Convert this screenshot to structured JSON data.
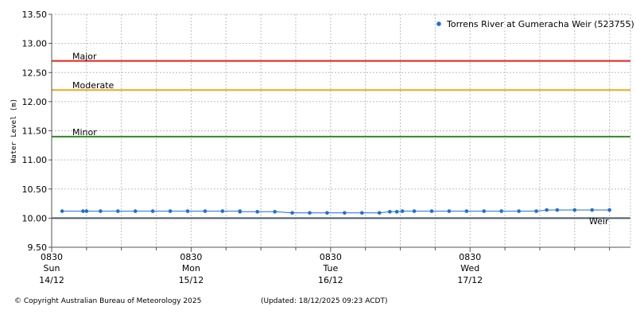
{
  "chart_data": {
    "type": "scatter",
    "title": "",
    "ylabel": "Water Level (m)",
    "xlabel": "",
    "ylim": [
      9.5,
      13.5
    ],
    "y_ticks": [
      "9.50",
      "10.00",
      "10.50",
      "11.00",
      "11.50",
      "12.00",
      "12.50",
      "13.00",
      "13.50"
    ],
    "x_range_hours": [
      0,
      83
    ],
    "x_ticks": [
      {
        "hour": 0,
        "time": "0830",
        "day": "Sun",
        "date": "14/12"
      },
      {
        "hour": 20,
        "time": "0830",
        "day": "Mon",
        "date": "15/12"
      },
      {
        "hour": 40,
        "time": "0830",
        "day": "Tue",
        "date": "16/12"
      },
      {
        "hour": 60,
        "time": "0830",
        "day": "Wed",
        "date": "17/12"
      }
    ],
    "grid": true,
    "legend_position": "top-right",
    "series": [
      {
        "name": "Torrens River at Gumeracha Weir (523755)",
        "color": "#1f6fd6",
        "x": [
          1.5,
          4.5,
          5,
          7,
          9.5,
          12,
          14.5,
          17,
          19.5,
          22,
          24.5,
          27,
          27,
          29.5,
          32,
          34.5,
          37,
          39.5,
          42,
          44.5,
          47,
          48.5,
          49.5,
          50.3,
          52,
          54.5,
          57,
          59.5,
          62,
          64.5,
          67,
          69.5,
          71,
          72.5,
          75,
          77.5,
          80
        ],
        "values": [
          10.12,
          10.12,
          10.12,
          10.12,
          10.12,
          10.12,
          10.12,
          10.12,
          10.12,
          10.12,
          10.12,
          10.12,
          10.11,
          10.11,
          10.11,
          10.09,
          10.09,
          10.09,
          10.09,
          10.09,
          10.09,
          10.11,
          10.11,
          10.12,
          10.12,
          10.12,
          10.12,
          10.12,
          10.12,
          10.12,
          10.12,
          10.12,
          10.14,
          10.14,
          10.14,
          10.14,
          10.14
        ]
      }
    ],
    "thresholds": [
      {
        "label": "Major",
        "value": 12.7,
        "color": "#e8201c"
      },
      {
        "label": "Moderate",
        "value": 12.2,
        "color": "#f0a81e"
      },
      {
        "label": "Minor",
        "value": 11.4,
        "color": "#2e8b1e"
      },
      {
        "label": "Weir",
        "value": 10.0,
        "color": "#4a5a6a"
      }
    ]
  },
  "footer": {
    "copyright": "© Copyright Australian Bureau of Meteorology 2025",
    "updated": "(Updated: 18/12/2025 09:23 ACDT)"
  }
}
